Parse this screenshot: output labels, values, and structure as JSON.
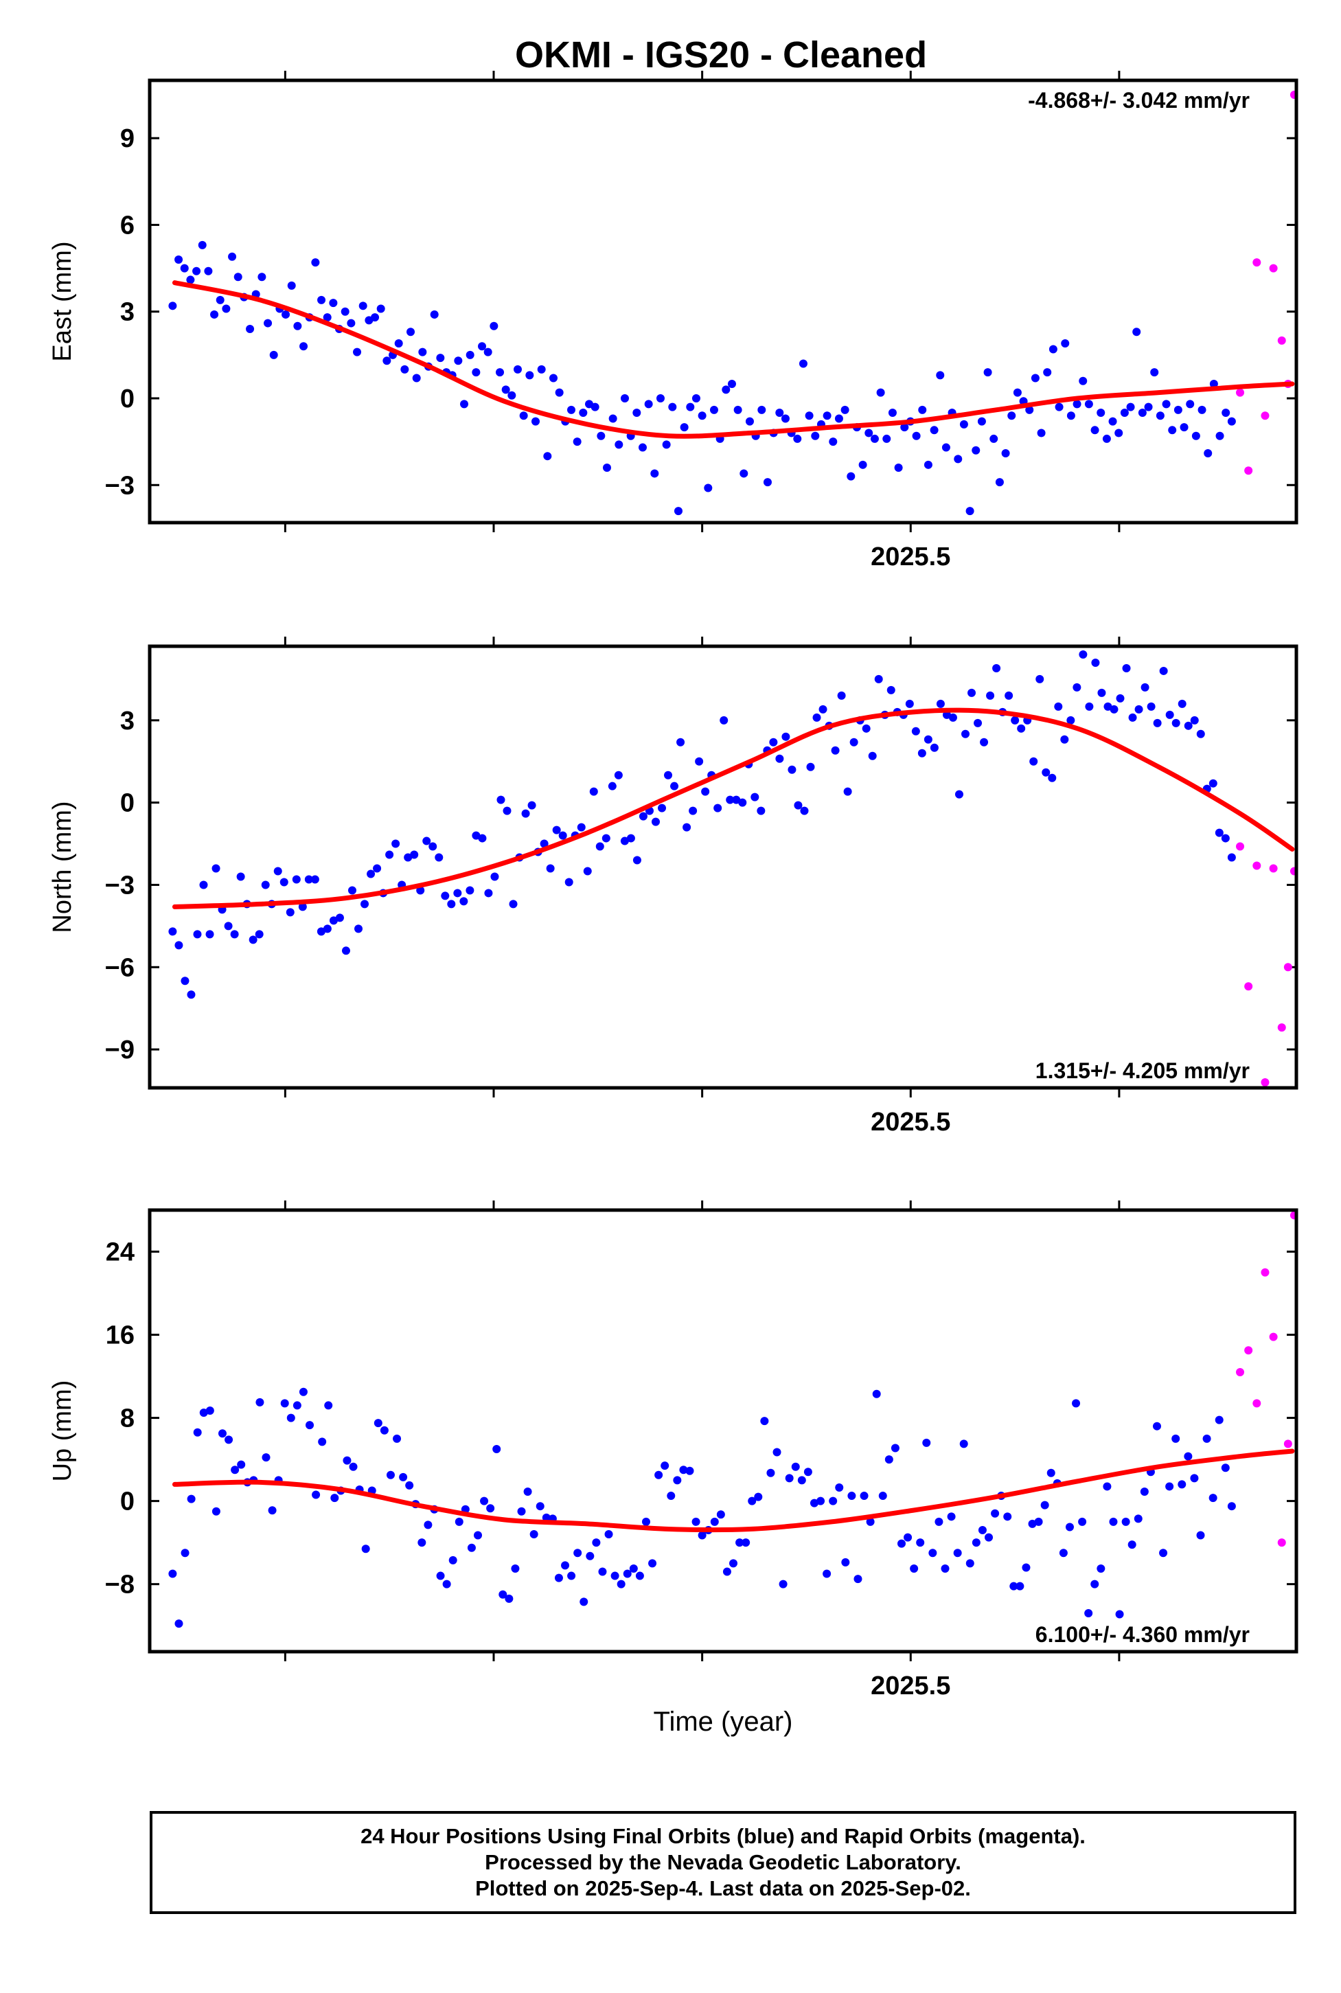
{
  "title": "OKMI  - IGS20 - Cleaned",
  "xlabel": "Time (year)",
  "footer": [
    "24 Hour Positions Using Final Orbits (blue) and Rapid Orbits (magenta).",
    "Processed by the Nevada Geodetic Laboratory.",
    "Plotted on 2025-Sep-4. Last data on 2025-Sep-02."
  ],
  "colors": {
    "final": "#0000ff",
    "rapid": "#ff00ff",
    "model": "#ff0000",
    "axis": "#000000"
  },
  "chart_data": [
    {
      "type": "scatter",
      "ylabel": "East (mm)",
      "rate_text": "-4.868+/- 3.042 mm/yr",
      "rate_position": "top-right",
      "xlim": [
        2025.185,
        2025.735
      ],
      "ylim": [
        -4.3,
        11.0
      ],
      "yticks": [
        -3,
        0,
        3,
        6,
        9
      ],
      "ytick_labels": [
        "−3",
        "0",
        "3",
        "6",
        "9"
      ],
      "xticks": [
        2025.25,
        2025.35,
        2025.45,
        2025.55,
        2025.65
      ],
      "xtick_labels": [
        "",
        "",
        "",
        "2025.5",
        "",
        ""
      ],
      "final_x_range": [
        2025.196,
        2025.704
      ],
      "final_y": [
        3.2,
        4.8,
        4.5,
        4.1,
        4.4,
        5.3,
        4.4,
        2.9,
        3.4,
        3.1,
        4.9,
        4.2,
        3.5,
        2.4,
        3.6,
        4.2,
        2.6,
        1.5,
        3.1,
        2.9,
        3.9,
        2.5,
        1.8,
        2.8,
        4.7,
        3.4,
        2.8,
        3.3,
        2.4,
        3.0,
        2.6,
        1.6,
        3.2,
        2.7,
        2.8,
        3.1,
        1.3,
        1.5,
        1.9,
        1.0,
        2.3,
        0.7,
        1.6,
        1.1,
        2.9,
        1.4,
        0.9,
        0.8,
        1.3,
        -0.2,
        1.5,
        0.9,
        1.8,
        1.6,
        2.5,
        0.9,
        0.3,
        0.1,
        1.0,
        -0.6,
        0.8,
        -0.8,
        1.0,
        -2.0,
        0.7,
        0.2,
        -0.8,
        -0.4,
        -1.5,
        -0.5,
        -0.2,
        -0.3,
        -1.3,
        -2.4,
        -0.7,
        -1.6,
        0.0,
        -1.3,
        -0.5,
        -1.7,
        -0.2,
        -2.6,
        0.0,
        -1.6,
        -0.3,
        -3.9,
        -1.0,
        -0.3,
        0.0,
        -0.6,
        -3.1,
        -0.4,
        -1.4,
        0.3,
        0.5,
        -0.4,
        -2.6,
        -0.8,
        -1.3,
        -0.4,
        -2.9,
        -1.2,
        -0.5,
        -0.7,
        -1.2,
        -1.4,
        1.2,
        -0.6,
        -1.3,
        -0.9,
        -0.6,
        -1.5,
        -0.7,
        -0.4,
        -2.7,
        -1.0,
        -2.3,
        -1.2,
        -1.4,
        0.2,
        -1.4,
        -0.5,
        -2.4,
        -1.0,
        -0.8,
        -1.3,
        -0.4,
        -2.3,
        -1.1,
        0.8,
        -1.7,
        -0.5,
        -2.1,
        -0.9,
        -3.9,
        -1.8,
        -0.8,
        0.9,
        -1.4,
        -2.9,
        -1.9,
        -0.6,
        0.2,
        -0.1,
        -0.4,
        0.7,
        -1.2,
        0.9,
        1.7,
        -0.3,
        1.9,
        -0.6,
        -0.2,
        0.6,
        -0.2,
        -1.1,
        -0.5,
        -1.4,
        -0.8,
        -1.2,
        -0.5,
        -0.3,
        2.3,
        -0.5,
        -0.3,
        0.9,
        -0.6,
        -0.2,
        -1.1,
        -0.4,
        -1.0,
        -0.2,
        -1.3,
        -0.4,
        -1.9,
        0.5,
        -1.3,
        -0.5,
        -0.8
      ],
      "rapid_x": [
        2025.708,
        2025.712,
        2025.716,
        2025.72,
        2025.724,
        2025.728,
        2025.731,
        2025.734
      ],
      "rapid_y": [
        0.2,
        -2.5,
        4.7,
        -0.6,
        4.5,
        2.0,
        0.5,
        10.5
      ],
      "model_x": [
        2025.197,
        2025.238,
        2025.277,
        2025.316,
        2025.355,
        2025.395,
        2025.434,
        2025.473,
        2025.512,
        2025.551,
        2025.591,
        2025.63,
        2025.669,
        2025.708,
        2025.733
      ],
      "model_y": [
        4.0,
        3.4,
        2.4,
        1.2,
        -0.1,
        -0.9,
        -1.3,
        -1.2,
        -1.0,
        -0.8,
        -0.4,
        0.0,
        0.2,
        0.4,
        0.5
      ]
    },
    {
      "type": "scatter",
      "ylabel": "North (mm)",
      "rate_text": "1.315+/- 4.205 mm/yr",
      "rate_position": "bottom-right",
      "xlim": [
        2025.185,
        2025.735
      ],
      "ylim": [
        -10.4,
        5.7
      ],
      "yticks": [
        -9,
        -6,
        -3,
        0,
        3
      ],
      "ytick_labels": [
        "−9",
        "−6",
        "−3",
        "0",
        "3"
      ],
      "xticks": [
        2025.25,
        2025.35,
        2025.45,
        2025.55,
        2025.65
      ],
      "xtick_labels": [
        "",
        "",
        "",
        "2025.5",
        "",
        ""
      ],
      "final_x_range": [
        2025.196,
        2025.704
      ],
      "final_y": [
        -4.7,
        -5.2,
        -6.5,
        -7.0,
        -4.8,
        -3.0,
        -4.8,
        -2.4,
        -3.9,
        -4.5,
        -4.8,
        -2.7,
        -3.7,
        -5.0,
        -4.8,
        -3.0,
        -3.7,
        -2.5,
        -2.9,
        -4.0,
        -2.8,
        -3.8,
        -2.8,
        -2.8,
        -4.7,
        -4.6,
        -4.3,
        -4.2,
        -5.4,
        -3.2,
        -4.6,
        -3.7,
        -2.6,
        -2.4,
        -3.3,
        -1.9,
        -1.5,
        -3.0,
        -2.0,
        -1.9,
        -3.2,
        -1.4,
        -1.6,
        -2.0,
        -3.4,
        -3.7,
        -3.3,
        -3.6,
        -3.2,
        -1.2,
        -1.3,
        -3.3,
        -2.7,
        0.1,
        -0.3,
        -3.7,
        -2.0,
        -0.4,
        -0.1,
        -1.8,
        -1.5,
        -2.4,
        -1.0,
        -1.2,
        -2.9,
        -1.2,
        -0.9,
        -2.5,
        0.4,
        -1.6,
        -1.3,
        0.6,
        1.0,
        -1.4,
        -1.3,
        -2.1,
        -0.5,
        -0.3,
        -0.7,
        -0.2,
        1.0,
        0.6,
        2.2,
        -0.9,
        -0.3,
        1.5,
        0.4,
        1.0,
        -0.2,
        3.0,
        0.1,
        0.1,
        0.0,
        1.4,
        0.2,
        -0.3,
        1.9,
        2.2,
        1.6,
        2.4,
        1.2,
        -0.1,
        -0.3,
        1.3,
        3.1,
        3.4,
        2.8,
        1.9,
        3.9,
        0.4,
        2.2,
        3.0,
        2.7,
        1.7,
        4.5,
        3.2,
        4.1,
        3.3,
        3.2,
        3.6,
        2.6,
        1.8,
        2.3,
        2.0,
        3.6,
        3.2,
        3.1,
        0.3,
        2.5,
        4.0,
        2.9,
        2.2,
        3.9,
        4.9,
        3.3,
        3.9,
        3.0,
        2.7,
        3.0,
        1.5,
        4.5,
        1.1,
        0.9,
        3.5,
        2.3,
        3.0,
        4.2,
        5.4,
        3.5,
        5.1,
        4.0,
        3.5,
        3.4,
        3.8,
        4.9,
        3.1,
        3.4,
        4.2,
        3.5,
        2.9,
        4.8,
        3.2,
        2.9,
        3.6,
        2.8,
        3.0,
        2.5,
        0.5,
        0.7,
        -1.1,
        -1.3,
        -2.0
      ],
      "rapid_x": [
        2025.708,
        2025.712,
        2025.716,
        2025.72,
        2025.724,
        2025.728,
        2025.731,
        2025.734
      ],
      "rapid_y": [
        -1.6,
        -6.7,
        -2.3,
        -10.2,
        -2.4,
        -8.2,
        -6.0,
        -2.5
      ],
      "model_x": [
        2025.197,
        2025.238,
        2025.277,
        2025.316,
        2025.355,
        2025.395,
        2025.434,
        2025.473,
        2025.512,
        2025.551,
        2025.591,
        2025.63,
        2025.669,
        2025.708,
        2025.733
      ],
      "model_y": [
        -3.8,
        -3.7,
        -3.5,
        -3.0,
        -2.2,
        -1.1,
        0.2,
        1.5,
        2.8,
        3.3,
        3.3,
        2.7,
        1.3,
        -0.4,
        -1.7
      ]
    },
    {
      "type": "scatter",
      "ylabel": "Up (mm)",
      "rate_text": "6.100+/- 4.360 mm/yr",
      "rate_position": "bottom-right",
      "xlim": [
        2025.185,
        2025.735
      ],
      "ylim": [
        -14.5,
        28.0
      ],
      "yticks": [
        -8,
        0,
        8,
        16,
        24
      ],
      "ytick_labels": [
        "−8",
        "0",
        "8",
        "16",
        "24"
      ],
      "xticks": [
        2025.25,
        2025.35,
        2025.45,
        2025.55,
        2025.65
      ],
      "xtick_labels": [
        "",
        "",
        "",
        "2025.5",
        "",
        ""
      ],
      "final_x_range": [
        2025.196,
        2025.704
      ],
      "final_y": [
        -7.0,
        -11.8,
        -5.0,
        0.2,
        6.6,
        8.5,
        8.7,
        -1.0,
        6.5,
        5.9,
        3.0,
        3.5,
        1.8,
        2.0,
        9.5,
        4.2,
        -0.9,
        2.0,
        9.4,
        8.0,
        9.2,
        10.5,
        7.3,
        0.6,
        5.7,
        9.2,
        0.3,
        1.0,
        3.9,
        3.3,
        1.1,
        -4.6,
        1.0,
        7.5,
        6.8,
        2.5,
        6.0,
        2.3,
        1.5,
        -0.3,
        -4.0,
        -2.3,
        -0.8,
        -7.2,
        -8.0,
        -5.7,
        -2.0,
        -0.8,
        -4.5,
        -3.3,
        0.0,
        -0.7,
        5.0,
        -9.0,
        -9.4,
        -6.5,
        -1.0,
        0.9,
        -3.2,
        -0.5,
        -1.6,
        -1.7,
        -7.4,
        -6.2,
        -7.2,
        -5.0,
        -9.7,
        -5.3,
        -4.0,
        -6.8,
        -3.2,
        -7.2,
        -8.0,
        -7.0,
        -6.5,
        -7.2,
        -2.0,
        -6.0,
        2.5,
        3.4,
        0.5,
        2.0,
        3.0,
        2.9,
        -2.0,
        -3.3,
        -2.8,
        -2.0,
        -1.3,
        -6.8,
        -6.0,
        -4.0,
        -4.0,
        0.0,
        0.4,
        7.7,
        2.7,
        4.7,
        -8.0,
        2.2,
        3.3,
        2.0,
        2.8,
        -0.2,
        0.0,
        -7.0,
        0.0,
        1.3,
        -5.9,
        0.5,
        -7.5,
        0.5,
        -2.0,
        10.3,
        0.5,
        4.0,
        5.1,
        -4.1,
        -3.5,
        -6.5,
        -4.0,
        5.6,
        -5.0,
        -2.0,
        -6.5,
        -1.5,
        -5.0,
        5.5,
        -6.0,
        -4.0,
        -2.8,
        -3.5,
        -1.2,
        0.5,
        -1.5,
        -8.2,
        -8.2,
        -6.4,
        -2.2,
        -2.0,
        -0.4,
        2.7,
        1.7,
        -5.0,
        -2.5,
        9.4,
        -2.0,
        -10.8,
        -8.0,
        -6.5,
        1.4,
        -2.0,
        -10.9,
        -2.0,
        -4.2,
        -1.7,
        0.9,
        2.8,
        7.2,
        -5.0,
        1.4,
        6.0,
        1.6,
        4.3,
        2.2,
        -3.3,
        6.0,
        0.3,
        7.8,
        3.2,
        -0.5
      ],
      "rapid_x": [
        2025.708,
        2025.712,
        2025.716,
        2025.72,
        2025.724,
        2025.728,
        2025.731,
        2025.734
      ],
      "rapid_y": [
        12.4,
        14.5,
        9.4,
        22.0,
        15.8,
        -4.0,
        5.5,
        27.5
      ],
      "model_x": [
        2025.197,
        2025.238,
        2025.277,
        2025.316,
        2025.355,
        2025.395,
        2025.434,
        2025.473,
        2025.512,
        2025.551,
        2025.591,
        2025.63,
        2025.669,
        2025.708,
        2025.733
      ],
      "model_y": [
        1.6,
        1.8,
        1.1,
        -0.5,
        -1.8,
        -2.2,
        -2.7,
        -2.7,
        -2.0,
        -0.9,
        0.4,
        1.9,
        3.3,
        4.3,
        4.8
      ]
    }
  ]
}
